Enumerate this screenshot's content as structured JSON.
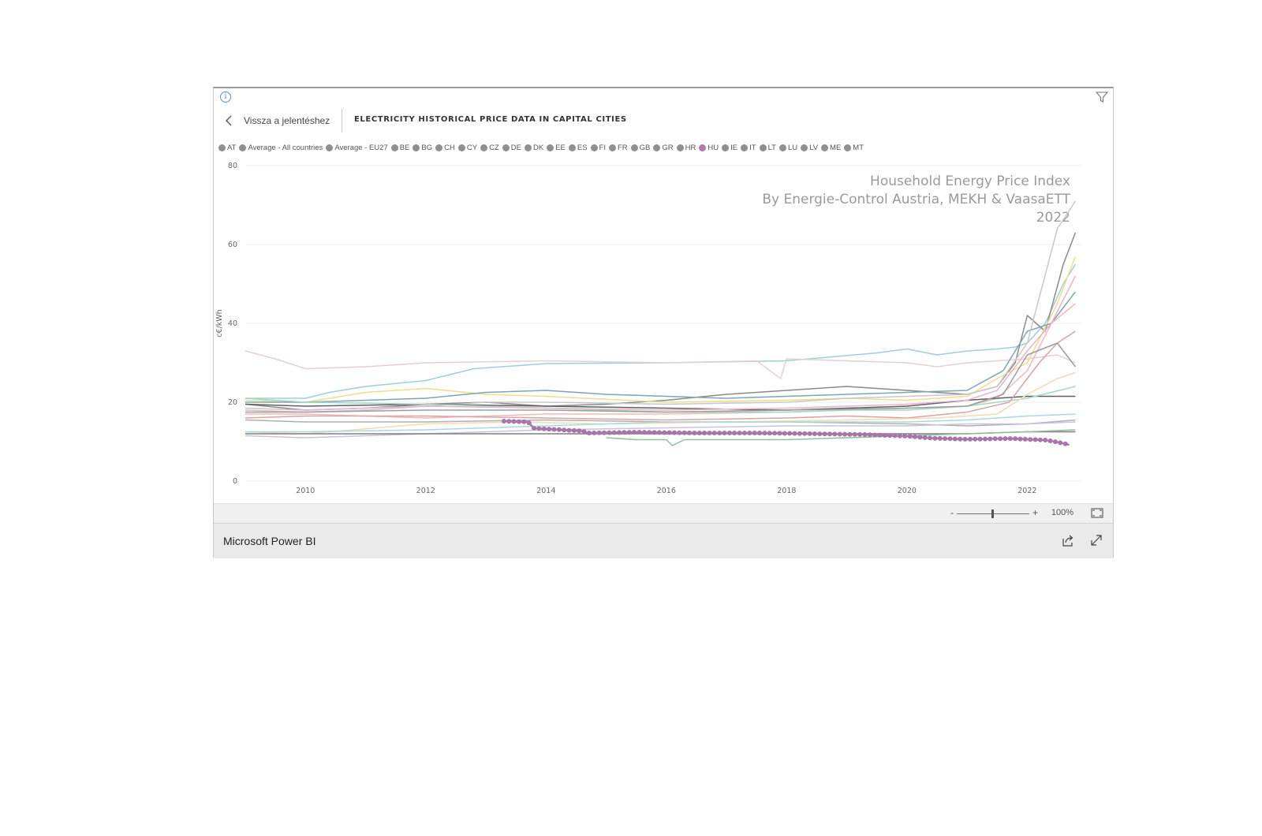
{
  "report": {
    "back_label": "Vissza a jelentéshez",
    "title": "ELECTRICITY HISTORICAL PRICE DATA IN CAPITAL CITIES"
  },
  "icons": {
    "info": "info-icon",
    "filter": "filter-icon",
    "back": "chevron-left-icon",
    "fit": "fit-to-page-icon",
    "share": "share-icon",
    "expand": "expand-icon"
  },
  "legend": {
    "items": [
      {
        "label": "AT",
        "color": "#8f8f8f"
      },
      {
        "label": "Average - All countries",
        "color": "#8f8f8f"
      },
      {
        "label": "Average - EU27",
        "color": "#8f8f8f"
      },
      {
        "label": "BE",
        "color": "#8f8f8f"
      },
      {
        "label": "BG",
        "color": "#8f8f8f"
      },
      {
        "label": "CH",
        "color": "#8f8f8f"
      },
      {
        "label": "CY",
        "color": "#8f8f8f"
      },
      {
        "label": "CZ",
        "color": "#8f8f8f"
      },
      {
        "label": "DE",
        "color": "#8f8f8f"
      },
      {
        "label": "DK",
        "color": "#8f8f8f"
      },
      {
        "label": "EE",
        "color": "#8f8f8f"
      },
      {
        "label": "ES",
        "color": "#8f8f8f"
      },
      {
        "label": "FI",
        "color": "#8f8f8f"
      },
      {
        "label": "FR",
        "color": "#8f8f8f"
      },
      {
        "label": "GB",
        "color": "#8f8f8f"
      },
      {
        "label": "GR",
        "color": "#8f8f8f"
      },
      {
        "label": "HR",
        "color": "#8f8f8f"
      },
      {
        "label": "HU",
        "color": "#b07ab0"
      },
      {
        "label": "IE",
        "color": "#8f8f8f"
      },
      {
        "label": "IT",
        "color": "#8f8f8f"
      },
      {
        "label": "LT",
        "color": "#8f8f8f"
      },
      {
        "label": "LU",
        "color": "#8f8f8f"
      },
      {
        "label": "LV",
        "color": "#8f8f8f"
      },
      {
        "label": "ME",
        "color": "#8f8f8f"
      },
      {
        "label": "MT",
        "color": "#8f8f8f"
      }
    ]
  },
  "zoom": {
    "minus": "-",
    "plus": "+",
    "level": "100%",
    "value_percent": 100
  },
  "footer": {
    "brand": "Microsoft Power BI"
  },
  "chart_data": {
    "type": "line",
    "ylabel": "c€/kWh",
    "xlabel": "",
    "ylim": [
      0,
      80
    ],
    "xlim": [
      2009.0,
      2022.9
    ],
    "yticks": [
      0,
      20,
      40,
      60,
      80
    ],
    "xticks": [
      2010,
      2012,
      2014,
      2016,
      2018,
      2020,
      2022
    ],
    "grid": true,
    "watermark": [
      "Household Energy Price Index",
      "By Energie-Control Austria, MEKH & VaasaETT",
      "2022"
    ],
    "highlight_series": "HU",
    "series": [
      {
        "name": "HU",
        "color": "#a974a9",
        "highlight": true,
        "x": [
          2013.3,
          2013.7,
          2013.8,
          2014.6,
          2014.7,
          2015.5,
          2016.5,
          2017.5,
          2018.5,
          2019.3,
          2020.0,
          2020.4,
          2021.0,
          2021.7,
          2022.3,
          2022.5,
          2022.7
        ],
        "y": [
          15.2,
          15.0,
          13.4,
          12.7,
          12.2,
          12.4,
          12.2,
          12.2,
          12.0,
          11.8,
          11.4,
          10.9,
          10.6,
          10.8,
          10.4,
          9.9,
          9.2
        ]
      },
      {
        "color": "#9ccfd9",
        "x": [
          2009.0,
          2010.0,
          2010.4,
          2011.0,
          2012.0,
          2012.8,
          2014.0,
          2016.0,
          2018.0,
          2019.5,
          2020.0,
          2020.5,
          2021.0,
          2021.5,
          2021.8,
          2022.0,
          2022.3,
          2022.6,
          2022.8
        ],
        "y": [
          21.0,
          21.0,
          22.5,
          24.0,
          25.5,
          28.5,
          29.8,
          30.0,
          30.5,
          32.5,
          33.5,
          32.0,
          33.0,
          33.5,
          34.0,
          35.0,
          40.0,
          50.0,
          55.0
        ]
      },
      {
        "color": "#e6d0d0",
        "x": [
          2009.0,
          2009.5,
          2010.0,
          2011.0,
          2012.0,
          2014.0,
          2016.0,
          2017.5,
          2017.9,
          2018.0,
          2019.0,
          2020.0,
          2020.5,
          2021.0,
          2022.0,
          2022.5,
          2022.8
        ],
        "y": [
          33.0,
          31.0,
          28.5,
          29.0,
          30.0,
          30.5,
          30.0,
          30.5,
          26.0,
          31.0,
          30.5,
          30.0,
          29.0,
          30.0,
          31.0,
          32.0,
          30.0
        ]
      },
      {
        "color": "#8a8a8a",
        "x": [
          2009.0,
          2010.0,
          2011.0,
          2012.0,
          2013.0,
          2014.0,
          2015.0,
          2016.0,
          2017.0,
          2018.0,
          2019.0,
          2020.0,
          2021.0,
          2021.5,
          2021.8,
          2022.0,
          2022.3,
          2022.6,
          2022.8
        ],
        "y": [
          19.5,
          18.0,
          18.5,
          19.5,
          20.0,
          19.0,
          19.5,
          20.5,
          22.0,
          23.0,
          24.0,
          23.0,
          22.0,
          24.0,
          30.0,
          42.0,
          38.0,
          55.0,
          63.0
        ]
      },
      {
        "color": "#f0dc8a",
        "x": [
          2009.0,
          2010.0,
          2011.0,
          2012.0,
          2013.0,
          2014.0,
          2016.0,
          2018.0,
          2019.0,
          2020.0,
          2021.0,
          2021.5,
          2022.0,
          2022.5,
          2022.8
        ],
        "y": [
          20.5,
          20.0,
          22.5,
          23.5,
          22.0,
          21.5,
          20.0,
          20.5,
          21.0,
          20.5,
          21.5,
          26.0,
          30.0,
          45.0,
          57.0
        ]
      },
      {
        "color": "#7aa6b5",
        "x": [
          2009.0,
          2010.0,
          2011.0,
          2012.0,
          2013.0,
          2014.0,
          2015.0,
          2016.0,
          2017.0,
          2018.0,
          2019.0,
          2020.0,
          2021.0,
          2021.6,
          2022.0,
          2022.4,
          2022.8
        ],
        "y": [
          20.0,
          20.0,
          20.5,
          21.0,
          22.5,
          23.0,
          22.0,
          21.5,
          21.0,
          21.5,
          22.0,
          22.5,
          23.0,
          28.0,
          38.0,
          40.0,
          48.0
        ]
      },
      {
        "color": "#c8c8c8",
        "x": [
          2009.0,
          2010.0,
          2011.0,
          2012.0,
          2013.0,
          2014.0,
          2016.0,
          2018.0,
          2019.0,
          2020.0,
          2021.0,
          2021.5,
          2022.0,
          2022.5,
          2022.8
        ],
        "y": [
          18.0,
          17.5,
          18.0,
          19.0,
          20.0,
          20.0,
          19.5,
          20.0,
          21.0,
          21.5,
          22.0,
          24.0,
          35.0,
          64.0,
          71.0
        ]
      },
      {
        "color": "#f2b8b8",
        "x": [
          2009.0,
          2010.0,
          2011.0,
          2012.0,
          2013.0,
          2014.0,
          2016.0,
          2018.0,
          2019.0,
          2020.0,
          2021.0,
          2021.5,
          2022.0,
          2022.4,
          2022.8
        ],
        "y": [
          17.0,
          17.0,
          16.5,
          16.0,
          16.5,
          17.0,
          17.0,
          17.5,
          18.0,
          18.5,
          19.0,
          21.0,
          28.0,
          40.0,
          45.0
        ]
      },
      {
        "color": "#5f5f5f",
        "x": [
          2009.0,
          2010.0,
          2012.0,
          2014.0,
          2016.0,
          2018.0,
          2020.0,
          2021.0,
          2022.0,
          2022.8
        ],
        "y": [
          19.5,
          19.0,
          19.5,
          19.0,
          18.5,
          18.0,
          19.0,
          20.5,
          21.5,
          21.5
        ]
      },
      {
        "color": "#9fd9c6",
        "x": [
          2009.0,
          2010.0,
          2012.0,
          2014.0,
          2016.0,
          2018.0,
          2019.0,
          2020.0,
          2021.0,
          2022.0,
          2022.8
        ],
        "y": [
          21.0,
          20.0,
          19.5,
          18.5,
          17.5,
          17.5,
          18.0,
          18.0,
          19.0,
          21.0,
          24.0
        ]
      },
      {
        "color": "#d9a3a3",
        "x": [
          2009.0,
          2010.0,
          2012.0,
          2014.0,
          2016.0,
          2018.0,
          2019.0,
          2020.0,
          2021.0,
          2021.7,
          2022.2,
          2022.5,
          2022.8
        ],
        "y": [
          16.0,
          16.5,
          16.5,
          16.0,
          15.5,
          16.0,
          16.5,
          16.0,
          17.5,
          20.0,
          30.0,
          35.0,
          38.0
        ]
      },
      {
        "color": "#b0b0b0",
        "x": [
          2009.0,
          2010.0,
          2012.0,
          2014.0,
          2016.0,
          2018.0,
          2020.0,
          2021.0,
          2022.0,
          2022.8
        ],
        "y": [
          15.5,
          15.0,
          15.0,
          15.5,
          15.0,
          15.0,
          14.5,
          14.0,
          14.5,
          15.5
        ]
      },
      {
        "color": "#f6d9b0",
        "x": [
          2009.0,
          2010.0,
          2012.0,
          2013.5,
          2015.0,
          2017.0,
          2019.0,
          2020.5,
          2021.5,
          2022.0,
          2022.5,
          2022.8
        ],
        "y": [
          12.5,
          12.0,
          14.5,
          15.0,
          14.5,
          15.0,
          15.5,
          16.0,
          17.0,
          22.0,
          26.0,
          27.5
        ]
      },
      {
        "color": "#c9c3e0",
        "x": [
          2009.0,
          2010.0,
          2011.0,
          2012.0,
          2014.0,
          2016.0,
          2018.0,
          2020.0,
          2021.0,
          2022.0,
          2022.8
        ],
        "y": [
          11.5,
          11.0,
          11.5,
          12.0,
          13.0,
          13.5,
          14.0,
          14.0,
          14.5,
          14.5,
          15.0
        ]
      },
      {
        "color": "#a8d8e0",
        "x": [
          2009.0,
          2010.0,
          2012.0,
          2014.0,
          2016.0,
          2018.0,
          2020.0,
          2021.0,
          2022.0,
          2022.8
        ],
        "y": [
          12.5,
          12.5,
          13.0,
          14.0,
          15.0,
          15.0,
          15.0,
          15.5,
          16.5,
          17.0
        ]
      },
      {
        "color": "#7f7f7f",
        "x": [
          2009.0,
          2010.0,
          2012.0,
          2014.0,
          2016.0,
          2018.0,
          2020.0,
          2021.0,
          2022.0,
          2022.8
        ],
        "y": [
          12.0,
          12.0,
          12.0,
          12.0,
          12.0,
          12.0,
          12.0,
          12.0,
          12.5,
          12.5
        ]
      },
      {
        "color": "#8fbf9f",
        "x": [
          2015.0,
          2015.5,
          2016.0,
          2016.1,
          2016.3,
          2017.0,
          2018.0,
          2019.0,
          2020.0,
          2021.0,
          2022.0,
          2022.8
        ],
        "y": [
          11.0,
          10.5,
          10.5,
          9.0,
          10.5,
          10.5,
          10.5,
          11.0,
          11.5,
          12.0,
          12.5,
          13.0
        ]
      },
      {
        "color": "#e8b4c8",
        "x": [
          2009.0,
          2010.0,
          2012.0,
          2014.0,
          2016.0,
          2018.0,
          2020.0,
          2021.0,
          2021.5,
          2022.0,
          2022.4,
          2022.8
        ],
        "y": [
          18.5,
          18.0,
          19.0,
          18.5,
          18.0,
          18.5,
          19.5,
          20.5,
          23.0,
          33.0,
          40.0,
          52.0
        ]
      },
      {
        "color": "#9d9d9d",
        "x": [
          2009.0,
          2010.0,
          2012.0,
          2014.0,
          2016.0,
          2018.0,
          2020.0,
          2021.0,
          2021.6,
          2022.0,
          2022.5,
          2022.8
        ],
        "y": [
          17.5,
          17.5,
          18.0,
          18.0,
          17.5,
          18.0,
          18.5,
          19.0,
          22.0,
          32.0,
          35.0,
          29.0
        ]
      }
    ]
  }
}
